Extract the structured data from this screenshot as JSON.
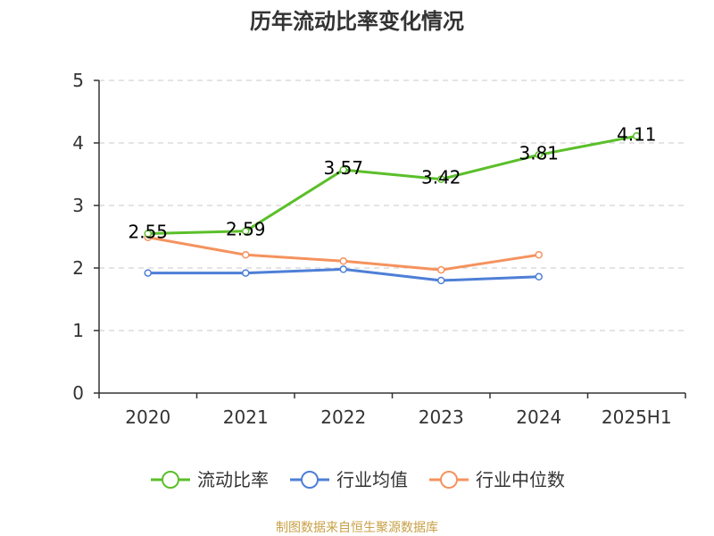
{
  "chart_data": {
    "type": "line",
    "title": "历年流动比率变化情况",
    "categories": [
      "2020",
      "2021",
      "2022",
      "2023",
      "2024",
      "2025H1"
    ],
    "ylim": [
      0,
      5
    ],
    "yticks": [
      "0",
      "1",
      "2",
      "3",
      "4",
      "5"
    ],
    "grid": true,
    "legend_position": "bottom",
    "series": [
      {
        "name": "流动比率",
        "color": "#5bbf2a",
        "values": [
          2.55,
          2.59,
          3.57,
          3.42,
          3.81,
          4.11
        ],
        "labels": [
          "2.55",
          "2.59",
          "3.57",
          "3.42",
          "3.81",
          "4.11"
        ]
      },
      {
        "name": "行业均值",
        "color": "#4e7fd6",
        "values": [
          1.92,
          1.92,
          1.98,
          1.8,
          1.86,
          null
        ]
      },
      {
        "name": "行业中位数",
        "color": "#f5925e",
        "values": [
          2.49,
          2.21,
          2.11,
          1.97,
          2.21,
          null
        ]
      }
    ]
  },
  "source": {
    "text": "制图数据来自恒生聚源数据库",
    "color": "#c8a046"
  }
}
